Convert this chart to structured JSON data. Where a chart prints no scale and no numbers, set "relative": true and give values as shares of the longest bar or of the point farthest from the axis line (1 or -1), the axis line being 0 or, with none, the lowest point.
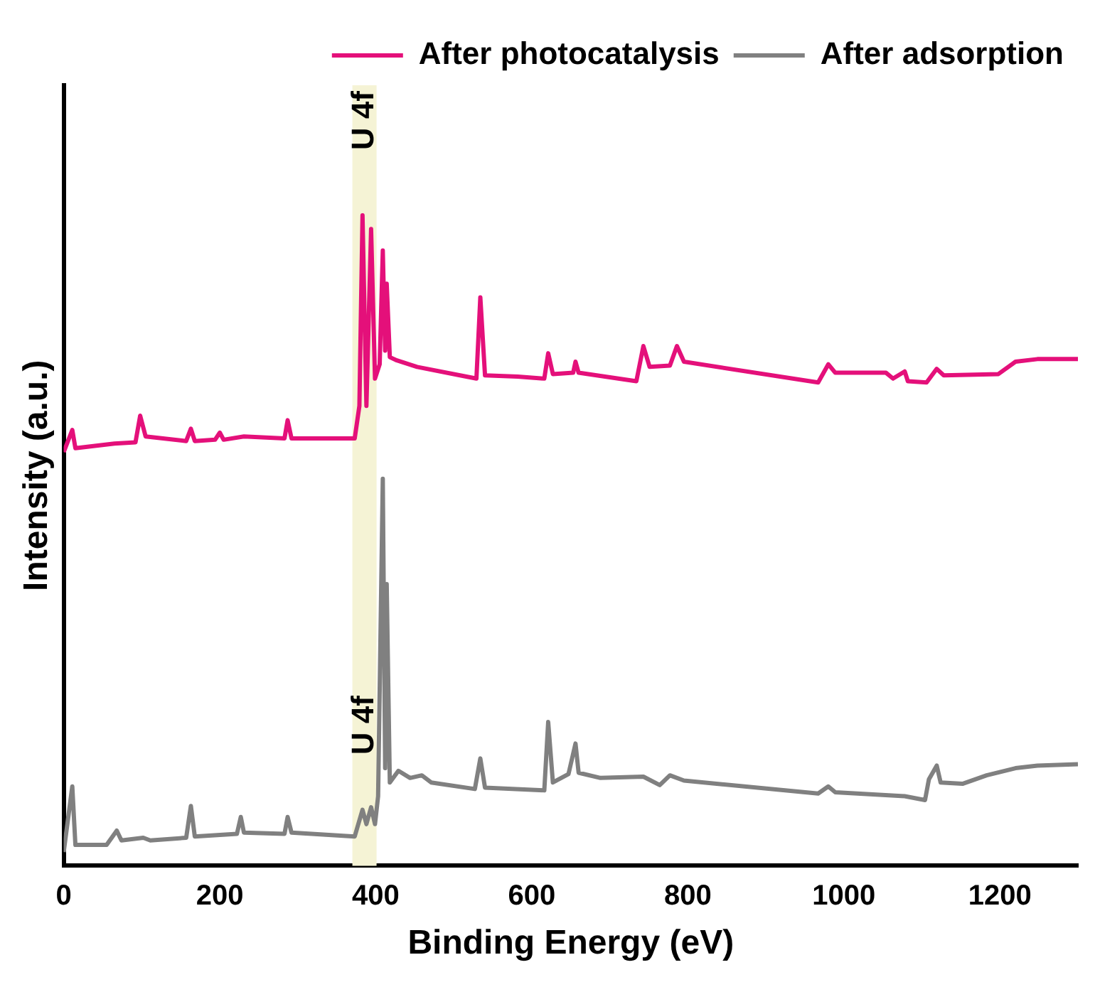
{
  "chart_data": {
    "type": "line",
    "xlabel": "Binding Energy (eV)",
    "ylabel": "Intensity (a.u.)",
    "relative": true,
    "xlim": [
      0,
      1300
    ],
    "xticks": [
      0,
      200,
      400,
      600,
      800,
      1000,
      1200
    ],
    "grid": false,
    "legend": "top right",
    "marker": "none",
    "line_style": "solid",
    "bands": [
      {
        "axis": "x",
        "from": 370,
        "to": 401,
        "label": "U 4f",
        "color": "#f5f3d5"
      }
    ],
    "annotations": [
      "U 4f"
    ],
    "series": [
      {
        "name": "After photocatalysis",
        "color": "#e4107a",
        "x": [
          0,
          11,
          15,
          65,
          92,
          98,
          105,
          157,
          163,
          168,
          194,
          200,
          205,
          231,
          283,
          287,
          292,
          373,
          379,
          383,
          388,
          394,
          399,
          405,
          409,
          412,
          414,
          418,
          427,
          453,
          508,
          529,
          534,
          540,
          582,
          616,
          621,
          627,
          653,
          656,
          660,
          734,
          743,
          751,
          777,
          786,
          795,
          967,
          980,
          989,
          1054,
          1063,
          1078,
          1082,
          1106,
          1119,
          1128,
          1198,
          1220,
          1248,
          1300
        ],
        "values": [
          0.636,
          0.67,
          0.642,
          0.649,
          0.651,
          0.692,
          0.66,
          0.653,
          0.672,
          0.653,
          0.655,
          0.666,
          0.655,
          0.66,
          0.657,
          0.685,
          0.657,
          0.657,
          0.707,
          1.0,
          0.707,
          0.979,
          0.749,
          0.771,
          0.946,
          0.792,
          0.895,
          0.782,
          0.777,
          0.767,
          0.754,
          0.749,
          0.874,
          0.754,
          0.752,
          0.749,
          0.788,
          0.756,
          0.758,
          0.775,
          0.758,
          0.745,
          0.799,
          0.767,
          0.769,
          0.799,
          0.775,
          0.743,
          0.771,
          0.758,
          0.758,
          0.749,
          0.76,
          0.745,
          0.743,
          0.764,
          0.754,
          0.756,
          0.775,
          0.779,
          0.779
        ]
      },
      {
        "name": "After adsorption",
        "color": "#808080",
        "x": [
          0,
          11,
          15,
          55,
          68,
          74,
          102,
          111,
          157,
          163,
          168,
          222,
          227,
          231,
          283,
          287,
          292,
          373,
          383,
          388,
          394,
          399,
          403,
          409,
          412,
          414,
          418,
          429,
          444,
          459,
          471,
          527,
          534,
          540,
          616,
          621,
          627,
          647,
          656,
          660,
          688,
          743,
          764,
          777,
          795,
          967,
          980,
          989,
          1078,
          1104,
          1109,
          1119,
          1124,
          1152,
          1183,
          1220,
          1248,
          1300
        ],
        "values": [
          0.021,
          0.122,
          0.032,
          0.032,
          0.054,
          0.039,
          0.043,
          0.039,
          0.043,
          0.092,
          0.045,
          0.049,
          0.075,
          0.051,
          0.049,
          0.075,
          0.051,
          0.045,
          0.086,
          0.064,
          0.09,
          0.064,
          0.107,
          0.595,
          0.15,
          0.433,
          0.128,
          0.146,
          0.135,
          0.139,
          0.128,
          0.118,
          0.165,
          0.12,
          0.116,
          0.221,
          0.128,
          0.141,
          0.188,
          0.143,
          0.135,
          0.137,
          0.124,
          0.139,
          0.131,
          0.111,
          0.122,
          0.113,
          0.107,
          0.101,
          0.133,
          0.154,
          0.128,
          0.126,
          0.139,
          0.15,
          0.154,
          0.156
        ]
      }
    ]
  }
}
